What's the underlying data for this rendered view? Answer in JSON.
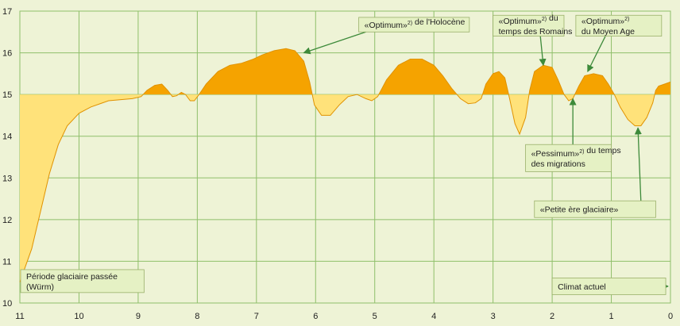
{
  "chart_data": {
    "type": "area",
    "title": "",
    "xlabel": "",
    "ylabel": "",
    "xlim": [
      11,
      0
    ],
    "ylim": [
      10,
      17
    ],
    "baseline": 15,
    "grid": true,
    "x_ticks": [
      11,
      10,
      9,
      8,
      7,
      6,
      5,
      4,
      3,
      2,
      1,
      0
    ],
    "y_ticks": [
      10,
      11,
      12,
      13,
      14,
      15,
      16,
      17
    ],
    "colors": {
      "background": "#eef3d6",
      "grid": "#8fbf6a",
      "above_baseline": "#f5a300",
      "below_baseline": "#ffe27a",
      "line": "#e09200",
      "arrow": "#3d8a3a"
    },
    "series": [
      {
        "points": [
          [
            11.0,
            10.5
          ],
          [
            10.95,
            10.7
          ],
          [
            10.8,
            11.3
          ],
          [
            10.65,
            12.2
          ],
          [
            10.5,
            13.1
          ],
          [
            10.35,
            13.8
          ],
          [
            10.2,
            14.25
          ],
          [
            10.0,
            14.55
          ],
          [
            9.8,
            14.7
          ],
          [
            9.5,
            14.85
          ],
          [
            9.1,
            14.9
          ],
          [
            8.95,
            14.95
          ],
          [
            8.85,
            15.1
          ],
          [
            8.72,
            15.22
          ],
          [
            8.6,
            15.25
          ],
          [
            8.5,
            15.1
          ],
          [
            8.42,
            14.95
          ],
          [
            8.35,
            14.97
          ],
          [
            8.27,
            15.05
          ],
          [
            8.2,
            15.0
          ],
          [
            8.12,
            14.85
          ],
          [
            8.05,
            14.85
          ],
          [
            7.97,
            15.0
          ],
          [
            7.85,
            15.25
          ],
          [
            7.65,
            15.55
          ],
          [
            7.45,
            15.7
          ],
          [
            7.25,
            15.75
          ],
          [
            7.05,
            15.85
          ],
          [
            6.9,
            15.95
          ],
          [
            6.7,
            16.05
          ],
          [
            6.5,
            16.1
          ],
          [
            6.35,
            16.05
          ],
          [
            6.2,
            15.8
          ],
          [
            6.1,
            15.3
          ],
          [
            6.02,
            14.75
          ],
          [
            5.9,
            14.5
          ],
          [
            5.75,
            14.5
          ],
          [
            5.6,
            14.75
          ],
          [
            5.45,
            14.95
          ],
          [
            5.3,
            15.0
          ],
          [
            5.15,
            14.9
          ],
          [
            5.05,
            14.85
          ],
          [
            4.95,
            14.95
          ],
          [
            4.8,
            15.35
          ],
          [
            4.6,
            15.7
          ],
          [
            4.4,
            15.85
          ],
          [
            4.2,
            15.85
          ],
          [
            4.0,
            15.7
          ],
          [
            3.85,
            15.45
          ],
          [
            3.7,
            15.15
          ],
          [
            3.55,
            14.9
          ],
          [
            3.42,
            14.78
          ],
          [
            3.3,
            14.8
          ],
          [
            3.2,
            14.9
          ],
          [
            3.12,
            15.25
          ],
          [
            3.0,
            15.5
          ],
          [
            2.9,
            15.55
          ],
          [
            2.8,
            15.4
          ],
          [
            2.72,
            14.9
          ],
          [
            2.63,
            14.3
          ],
          [
            2.55,
            14.05
          ],
          [
            2.45,
            14.45
          ],
          [
            2.38,
            15.1
          ],
          [
            2.3,
            15.55
          ],
          [
            2.15,
            15.7
          ],
          [
            2.0,
            15.65
          ],
          [
            1.9,
            15.35
          ],
          [
            1.8,
            15.0
          ],
          [
            1.72,
            14.85
          ],
          [
            1.65,
            14.9
          ],
          [
            1.55,
            15.2
          ],
          [
            1.45,
            15.45
          ],
          [
            1.3,
            15.5
          ],
          [
            1.15,
            15.45
          ],
          [
            1.05,
            15.25
          ],
          [
            0.95,
            15.0
          ],
          [
            0.85,
            14.7
          ],
          [
            0.72,
            14.4
          ],
          [
            0.6,
            14.25
          ],
          [
            0.5,
            14.25
          ],
          [
            0.4,
            14.45
          ],
          [
            0.3,
            14.8
          ],
          [
            0.25,
            15.1
          ],
          [
            0.2,
            15.2
          ],
          [
            0.1,
            15.25
          ],
          [
            0.0,
            15.3
          ]
        ]
      }
    ],
    "annotations": [
      {
        "id": "periode-glaciaire",
        "lines": [
          [
            {
              "t": "Période glaciaire passée"
            }
          ],
          [
            {
              "t": "(Würm)"
            }
          ]
        ],
        "box": [
          11.0,
          10.8,
          8.9,
          10.25
        ],
        "arrow_h": {
          "y": 10.4,
          "from": 10.9,
          "to": 11.0
        }
      },
      {
        "id": "optimum-holocene",
        "lines": [
          [
            {
              "t": "«Optimum»"
            },
            {
              "t": "2)",
              "sup": true
            },
            {
              "t": " de l'Holocène"
            }
          ]
        ],
        "box": [
          5.27,
          16.85,
          3.4,
          16.5
        ],
        "arrow": {
          "from": [
            5.15,
            16.5
          ],
          "to": [
            6.2,
            16.0
          ]
        }
      },
      {
        "id": "optimum-romains",
        "lines": [
          [
            {
              "t": "«Optimum»"
            },
            {
              "t": "2)",
              "sup": true
            },
            {
              "t": " du"
            }
          ],
          [
            {
              "t": "temps des Romains"
            }
          ]
        ],
        "box": [
          3.0,
          16.9,
          1.8,
          16.4
        ],
        "arrow": {
          "from": [
            2.2,
            16.4
          ],
          "to": [
            2.15,
            15.7
          ]
        }
      },
      {
        "id": "optimum-moyen-age",
        "lines": [
          [
            {
              "t": "«Optimum»"
            },
            {
              "t": "2)",
              "sup": true
            }
          ],
          [
            {
              "t": "du Moyen Age"
            }
          ]
        ],
        "box": [
          1.6,
          16.9,
          0.15,
          16.4
        ],
        "arrow": {
          "from": [
            1.1,
            16.4
          ],
          "to": [
            1.4,
            15.55
          ]
        }
      },
      {
        "id": "pessimum-migrations",
        "lines": [
          [
            {
              "t": "«Pessimum»"
            },
            {
              "t": "2)",
              "sup": true
            },
            {
              "t": " du temps"
            }
          ],
          [
            {
              "t": "des migrations"
            }
          ]
        ],
        "box": [
          2.45,
          13.8,
          1.0,
          13.15
        ],
        "arrow": {
          "from": [
            1.65,
            13.8
          ],
          "to": [
            1.65,
            14.9
          ]
        }
      },
      {
        "id": "petite-ere-glaciaire",
        "lines": [
          [
            {
              "t": "«Petite ère glaciaire»"
            }
          ]
        ],
        "box": [
          2.3,
          12.45,
          0.25,
          12.05
        ],
        "arrow": {
          "from": [
            0.5,
            12.45
          ],
          "to": [
            0.55,
            14.2
          ]
        }
      },
      {
        "id": "climat-actuel",
        "lines": [
          [
            {
              "t": "Climat actuel"
            }
          ]
        ],
        "box": [
          2.0,
          10.6,
          0.08,
          10.2
        ],
        "arrow_h": {
          "y": 10.4,
          "from": 0.08,
          "to": 0.0
        }
      }
    ]
  }
}
